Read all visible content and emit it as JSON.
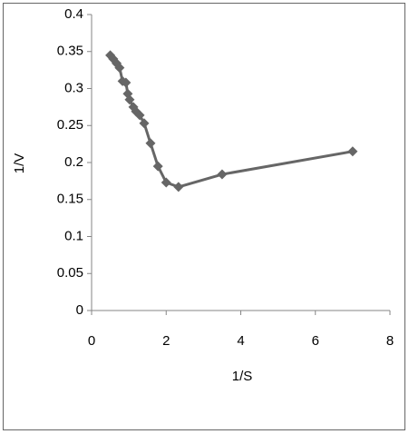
{
  "chart_data": {
    "type": "line",
    "x_label": "1/S",
    "y_label": "1/V",
    "x": [
      0.5,
      0.58,
      0.67,
      0.75,
      0.83,
      0.92,
      0.97,
      1.02,
      1.12,
      1.19,
      1.29,
      1.41,
      1.58,
      1.78,
      2.0,
      2.33,
      3.5,
      7.0
    ],
    "values": [
      0.345,
      0.34,
      0.334,
      0.328,
      0.31,
      0.308,
      0.293,
      0.285,
      0.275,
      0.269,
      0.264,
      0.253,
      0.226,
      0.195,
      0.173,
      0.167,
      0.184,
      0.215
    ],
    "color": "#666666",
    "xlim": [
      0,
      8
    ],
    "xticks": [
      0,
      2,
      4,
      6,
      8
    ],
    "ylim": [
      0,
      0.4
    ],
    "yticks": [
      0,
      0.05,
      0.1,
      0.15,
      0.2,
      0.25,
      0.3,
      0.35,
      0.4
    ],
    "grid": false
  }
}
